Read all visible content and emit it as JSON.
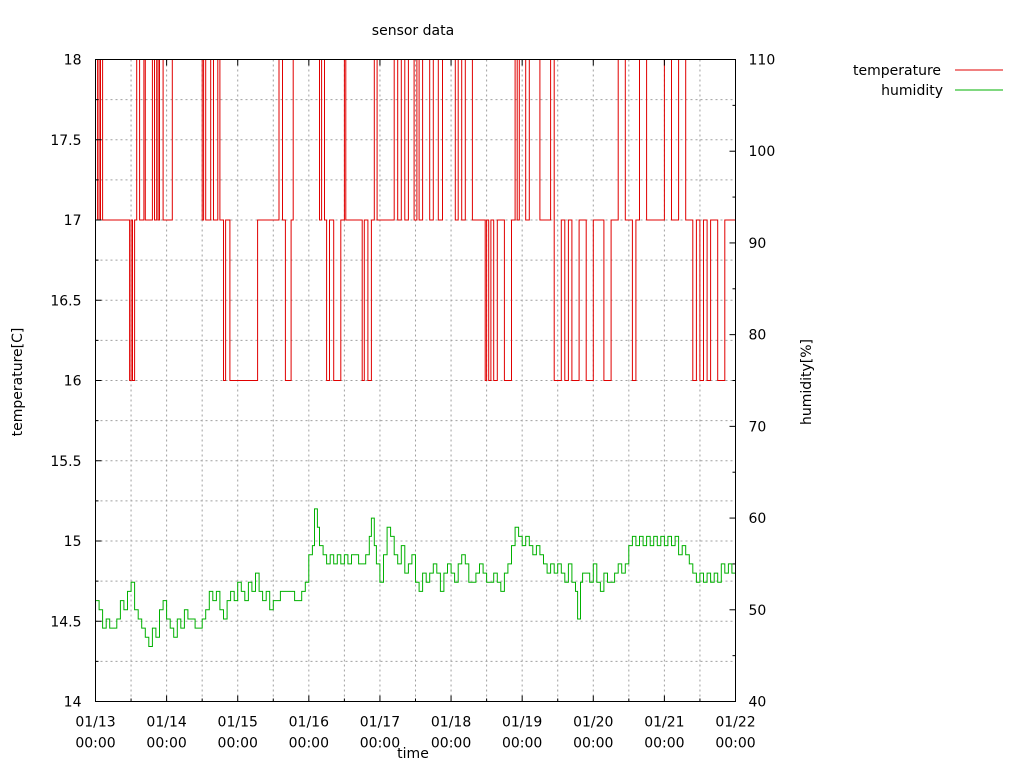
{
  "chart_data": {
    "type": "line",
    "title": "sensor data",
    "xlabel": "time",
    "ylabel": "temperature[C]",
    "y2label": "humidity[%]",
    "grid": true,
    "legend_position": "top-right, outside plot",
    "xlim": [
      "01/13 00:00",
      "01/22 00:00"
    ],
    "ylim": [
      14,
      18
    ],
    "y2lim": [
      40,
      110
    ],
    "x_ticks": [
      "01/13 00:00",
      "01/14 00:00",
      "01/15 00:00",
      "01/16 00:00",
      "01/17 00:00",
      "01/18 00:00",
      "01/19 00:00",
      "01/20 00:00",
      "01/21 00:00",
      "01/22 00:00"
    ],
    "y_ticks": [
      "14",
      "14.5",
      "15",
      "15.5",
      "16",
      "16.5",
      "17",
      "17.5",
      "18"
    ],
    "y2_ticks": [
      "40",
      "50",
      "60",
      "70",
      "80",
      "90",
      "100",
      "110"
    ],
    "series": [
      {
        "name": "temperature",
        "axis": "left",
        "color": "#e00000",
        "x_unit": "days since 01/13 00:00",
        "points": [
          [
            0.0,
            17
          ],
          [
            0.03,
            18
          ],
          [
            0.05,
            17
          ],
          [
            0.07,
            18
          ],
          [
            0.1,
            17
          ],
          [
            0.48,
            16
          ],
          [
            0.5,
            17
          ],
          [
            0.52,
            16
          ],
          [
            0.55,
            17
          ],
          [
            0.58,
            18
          ],
          [
            0.62,
            17
          ],
          [
            0.68,
            18
          ],
          [
            0.7,
            17
          ],
          [
            0.8,
            18
          ],
          [
            0.83,
            17
          ],
          [
            0.86,
            18
          ],
          [
            0.88,
            17
          ],
          [
            0.9,
            18
          ],
          [
            0.95,
            17
          ],
          [
            1.08,
            18
          ],
          [
            1.5,
            17
          ],
          [
            1.52,
            18
          ],
          [
            1.55,
            17
          ],
          [
            1.62,
            18
          ],
          [
            1.66,
            17
          ],
          [
            1.72,
            18
          ],
          [
            1.75,
            17
          ],
          [
            1.8,
            16
          ],
          [
            1.83,
            17
          ],
          [
            1.89,
            16
          ],
          [
            2.0,
            16
          ],
          [
            2.28,
            17
          ],
          [
            2.58,
            18
          ],
          [
            2.63,
            17
          ],
          [
            2.67,
            16
          ],
          [
            2.75,
            17
          ],
          [
            2.78,
            18
          ],
          [
            3.15,
            17
          ],
          [
            3.18,
            18
          ],
          [
            3.22,
            17
          ],
          [
            3.25,
            16
          ],
          [
            3.29,
            17
          ],
          [
            3.35,
            16
          ],
          [
            3.45,
            17
          ],
          [
            3.5,
            18
          ],
          [
            3.52,
            17
          ],
          [
            3.75,
            16
          ],
          [
            3.78,
            17
          ],
          [
            3.83,
            16
          ],
          [
            3.88,
            17
          ],
          [
            3.92,
            18
          ],
          [
            3.96,
            17
          ],
          [
            4.2,
            18
          ],
          [
            4.25,
            17
          ],
          [
            4.3,
            18
          ],
          [
            4.35,
            17
          ],
          [
            4.4,
            18
          ],
          [
            4.48,
            17
          ],
          [
            4.52,
            18
          ],
          [
            4.55,
            17
          ],
          [
            4.6,
            18
          ],
          [
            4.7,
            17
          ],
          [
            4.75,
            18
          ],
          [
            4.82,
            17
          ],
          [
            4.88,
            18
          ],
          [
            5.06,
            17
          ],
          [
            5.1,
            18
          ],
          [
            5.15,
            17
          ],
          [
            5.2,
            18
          ],
          [
            5.3,
            17
          ],
          [
            5.48,
            16
          ],
          [
            5.5,
            17
          ],
          [
            5.53,
            16
          ],
          [
            5.56,
            17
          ],
          [
            5.6,
            16
          ],
          [
            5.65,
            17
          ],
          [
            5.75,
            16
          ],
          [
            5.85,
            17
          ],
          [
            5.9,
            18
          ],
          [
            5.93,
            17
          ],
          [
            5.96,
            18
          ],
          [
            6.05,
            17
          ],
          [
            6.1,
            18
          ],
          [
            6.25,
            17
          ],
          [
            6.4,
            18
          ],
          [
            6.45,
            16
          ],
          [
            6.55,
            17
          ],
          [
            6.6,
            16
          ],
          [
            6.65,
            17
          ],
          [
            6.7,
            16
          ],
          [
            6.8,
            17
          ],
          [
            6.9,
            16
          ],
          [
            7.0,
            17
          ],
          [
            7.15,
            16
          ],
          [
            7.25,
            17
          ],
          [
            7.35,
            18
          ],
          [
            7.45,
            17
          ],
          [
            7.55,
            16
          ],
          [
            7.6,
            17
          ],
          [
            7.65,
            18
          ],
          [
            7.75,
            17
          ],
          [
            8.0,
            18
          ],
          [
            8.1,
            17
          ],
          [
            8.2,
            18
          ],
          [
            8.3,
            17
          ],
          [
            8.4,
            16
          ],
          [
            8.45,
            17
          ],
          [
            8.5,
            16
          ],
          [
            8.55,
            17
          ],
          [
            8.6,
            16
          ],
          [
            8.65,
            17
          ],
          [
            8.75,
            16
          ],
          [
            8.85,
            17
          ],
          [
            8.95,
            17
          ],
          [
            9.0,
            17
          ]
        ]
      },
      {
        "name": "humidity",
        "axis": "right",
        "color": "#00b000",
        "x_unit": "days since 01/13 00:00",
        "points": [
          [
            0.0,
            51
          ],
          [
            0.05,
            50
          ],
          [
            0.1,
            48
          ],
          [
            0.15,
            49
          ],
          [
            0.2,
            48
          ],
          [
            0.3,
            49
          ],
          [
            0.35,
            51
          ],
          [
            0.4,
            50
          ],
          [
            0.45,
            52
          ],
          [
            0.5,
            53
          ],
          [
            0.55,
            50
          ],
          [
            0.6,
            49
          ],
          [
            0.65,
            48
          ],
          [
            0.7,
            47
          ],
          [
            0.75,
            46
          ],
          [
            0.8,
            48
          ],
          [
            0.85,
            47
          ],
          [
            0.9,
            50
          ],
          [
            0.95,
            51
          ],
          [
            1.0,
            49
          ],
          [
            1.05,
            48
          ],
          [
            1.1,
            47
          ],
          [
            1.15,
            49
          ],
          [
            1.2,
            48
          ],
          [
            1.25,
            50
          ],
          [
            1.3,
            49
          ],
          [
            1.4,
            48
          ],
          [
            1.5,
            49
          ],
          [
            1.55,
            50
          ],
          [
            1.6,
            52
          ],
          [
            1.65,
            51
          ],
          [
            1.7,
            52
          ],
          [
            1.75,
            50
          ],
          [
            1.8,
            49
          ],
          [
            1.85,
            51
          ],
          [
            1.9,
            52
          ],
          [
            1.95,
            51
          ],
          [
            2.0,
            53
          ],
          [
            2.05,
            52
          ],
          [
            2.1,
            51
          ],
          [
            2.15,
            53
          ],
          [
            2.2,
            52
          ],
          [
            2.25,
            54
          ],
          [
            2.3,
            52
          ],
          [
            2.35,
            51
          ],
          [
            2.4,
            52
          ],
          [
            2.45,
            50
          ],
          [
            2.5,
            51
          ],
          [
            2.6,
            52
          ],
          [
            2.7,
            52
          ],
          [
            2.8,
            51
          ],
          [
            2.9,
            52
          ],
          [
            2.95,
            53
          ],
          [
            3.0,
            56
          ],
          [
            3.05,
            57
          ],
          [
            3.08,
            61
          ],
          [
            3.12,
            59
          ],
          [
            3.15,
            57
          ],
          [
            3.2,
            56
          ],
          [
            3.25,
            55
          ],
          [
            3.3,
            56
          ],
          [
            3.35,
            55
          ],
          [
            3.4,
            56
          ],
          [
            3.45,
            55
          ],
          [
            3.5,
            56
          ],
          [
            3.55,
            55
          ],
          [
            3.6,
            56
          ],
          [
            3.7,
            55
          ],
          [
            3.8,
            56
          ],
          [
            3.85,
            58
          ],
          [
            3.88,
            60
          ],
          [
            3.92,
            57
          ],
          [
            3.95,
            55
          ],
          [
            4.0,
            53
          ],
          [
            4.05,
            56
          ],
          [
            4.1,
            59
          ],
          [
            4.15,
            58
          ],
          [
            4.2,
            56
          ],
          [
            4.25,
            55
          ],
          [
            4.3,
            57
          ],
          [
            4.35,
            54
          ],
          [
            4.4,
            55
          ],
          [
            4.45,
            56
          ],
          [
            4.5,
            53
          ],
          [
            4.55,
            52
          ],
          [
            4.6,
            54
          ],
          [
            4.65,
            53
          ],
          [
            4.7,
            54
          ],
          [
            4.75,
            55
          ],
          [
            4.8,
            54
          ],
          [
            4.85,
            52
          ],
          [
            4.9,
            54
          ],
          [
            4.95,
            55
          ],
          [
            5.0,
            54
          ],
          [
            5.05,
            53
          ],
          [
            5.1,
            55
          ],
          [
            5.15,
            56
          ],
          [
            5.2,
            55
          ],
          [
            5.25,
            53
          ],
          [
            5.3,
            53
          ],
          [
            5.35,
            54
          ],
          [
            5.4,
            55
          ],
          [
            5.45,
            54
          ],
          [
            5.5,
            53
          ],
          [
            5.55,
            53
          ],
          [
            5.6,
            54
          ],
          [
            5.65,
            53
          ],
          [
            5.7,
            52
          ],
          [
            5.75,
            54
          ],
          [
            5.8,
            55
          ],
          [
            5.85,
            57
          ],
          [
            5.9,
            59
          ],
          [
            5.95,
            58
          ],
          [
            6.0,
            57
          ],
          [
            6.05,
            58
          ],
          [
            6.1,
            57
          ],
          [
            6.15,
            56
          ],
          [
            6.2,
            57
          ],
          [
            6.25,
            56
          ],
          [
            6.3,
            55
          ],
          [
            6.35,
            54
          ],
          [
            6.4,
            55
          ],
          [
            6.45,
            54
          ],
          [
            6.5,
            55
          ],
          [
            6.55,
            54
          ],
          [
            6.6,
            53
          ],
          [
            6.65,
            55
          ],
          [
            6.7,
            53
          ],
          [
            6.75,
            52
          ],
          [
            6.78,
            49
          ],
          [
            6.82,
            53
          ],
          [
            6.85,
            54
          ],
          [
            6.9,
            54
          ],
          [
            6.95,
            53
          ],
          [
            7.0,
            55
          ],
          [
            7.05,
            53
          ],
          [
            7.1,
            52
          ],
          [
            7.15,
            54
          ],
          [
            7.2,
            53
          ],
          [
            7.25,
            53
          ],
          [
            7.3,
            54
          ],
          [
            7.35,
            55
          ],
          [
            7.4,
            54
          ],
          [
            7.45,
            55
          ],
          [
            7.5,
            57
          ],
          [
            7.55,
            58
          ],
          [
            7.6,
            57
          ],
          [
            7.65,
            58
          ],
          [
            7.7,
            57
          ],
          [
            7.75,
            58
          ],
          [
            7.8,
            57
          ],
          [
            7.85,
            58
          ],
          [
            7.9,
            57
          ],
          [
            7.95,
            58
          ],
          [
            8.0,
            57
          ],
          [
            8.05,
            58
          ],
          [
            8.1,
            57
          ],
          [
            8.15,
            58
          ],
          [
            8.2,
            56
          ],
          [
            8.25,
            57
          ],
          [
            8.3,
            56
          ],
          [
            8.35,
            55
          ],
          [
            8.4,
            54
          ],
          [
            8.45,
            53
          ],
          [
            8.5,
            54
          ],
          [
            8.55,
            53
          ],
          [
            8.6,
            54
          ],
          [
            8.65,
            53
          ],
          [
            8.7,
            54
          ],
          [
            8.75,
            53
          ],
          [
            8.8,
            55
          ],
          [
            8.85,
            54
          ],
          [
            8.9,
            55
          ],
          [
            8.95,
            54
          ],
          [
            9.0,
            54
          ]
        ]
      }
    ]
  }
}
